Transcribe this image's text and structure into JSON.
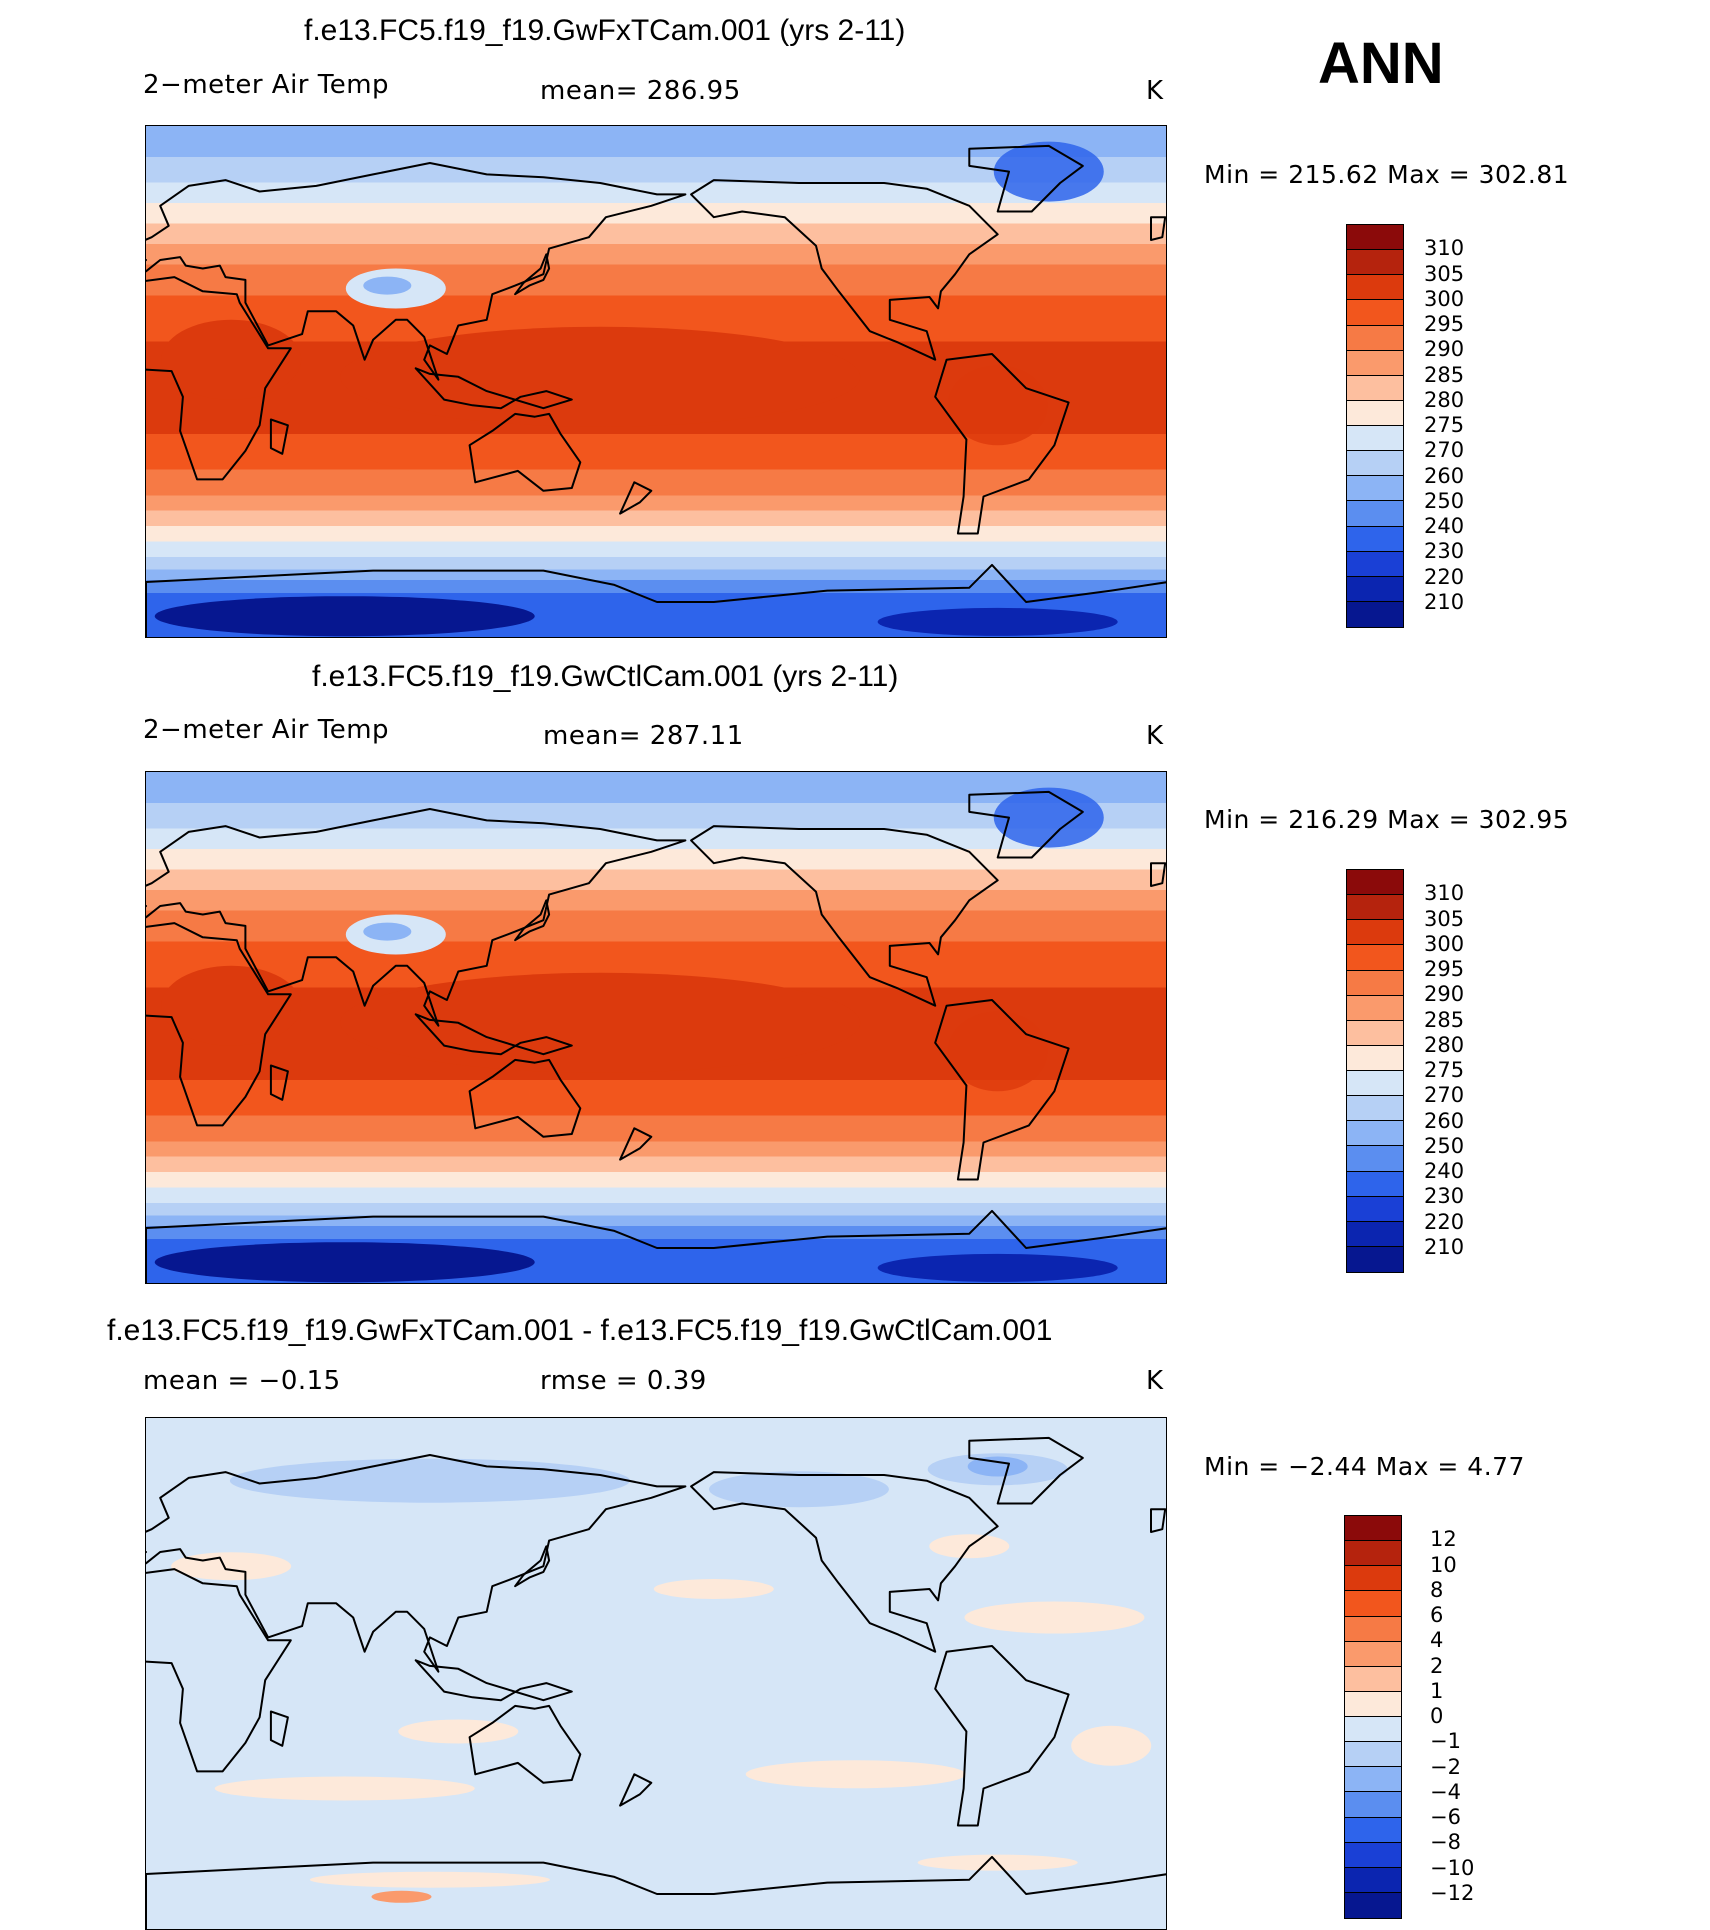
{
  "season": "ANN",
  "panels": [
    {
      "title": "f.e13.FC5.f19_f19.GwFxTCam.001 (yrs 2-11)",
      "left": "2−meter Air Temp",
      "center": "mean=  286.95",
      "units": "K",
      "minmax": "Min  =  215.62  Max  =  302.81",
      "colorbar": "abs",
      "map_type": "abs"
    },
    {
      "title": "f.e13.FC5.f19_f19.GwCtlCam.001 (yrs 2-11)",
      "left": "2−meter Air Temp",
      "center": "mean=  287.11",
      "units": "K",
      "minmax": "Min  =  216.29  Max  =  302.95",
      "colorbar": "abs",
      "map_type": "abs"
    },
    {
      "title": "f.e13.FC5.f19_f19.GwFxTCam.001 - f.e13.FC5.f19_f19.GwCtlCam.001",
      "left": "mean  =    −0.15",
      "center": "rmse  =     0.39",
      "units": "K",
      "minmax": "Min  =    −2.44  Max  =      4.77",
      "colorbar": "diff",
      "map_type": "diff"
    }
  ],
  "colorbars": {
    "abs": {
      "labels": [
        "310",
        "305",
        "300",
        "295",
        "290",
        "285",
        "280",
        "275",
        "270",
        "260",
        "250",
        "240",
        "230",
        "220",
        "210"
      ],
      "colors": [
        "#8b0a0a",
        "#b5230d",
        "#dc3a0d",
        "#f2561d",
        "#f67a45",
        "#fa9a6c",
        "#fdbf9f",
        "#fde9da",
        "#d6e6f7",
        "#b6d0f5",
        "#8cb4f5",
        "#5b8ef0",
        "#2e64eb",
        "#1a40d6",
        "#0b25b0",
        "#061790"
      ]
    },
    "diff": {
      "labels": [
        "12",
        "10",
        "8",
        "6",
        "4",
        "2",
        "1",
        "0",
        "−1",
        "−2",
        "−4",
        "−6",
        "−8",
        "−10",
        "−12"
      ],
      "colors": [
        "#8b0a0a",
        "#b5230d",
        "#dc3a0d",
        "#f2561d",
        "#f67a45",
        "#fa9a6c",
        "#fdbf9f",
        "#fde9da",
        "#d6e6f7",
        "#b6d0f5",
        "#8cb4f5",
        "#5b8ef0",
        "#2e64eb",
        "#1a40d6",
        "#0b25b0",
        "#061790"
      ]
    }
  }
}
